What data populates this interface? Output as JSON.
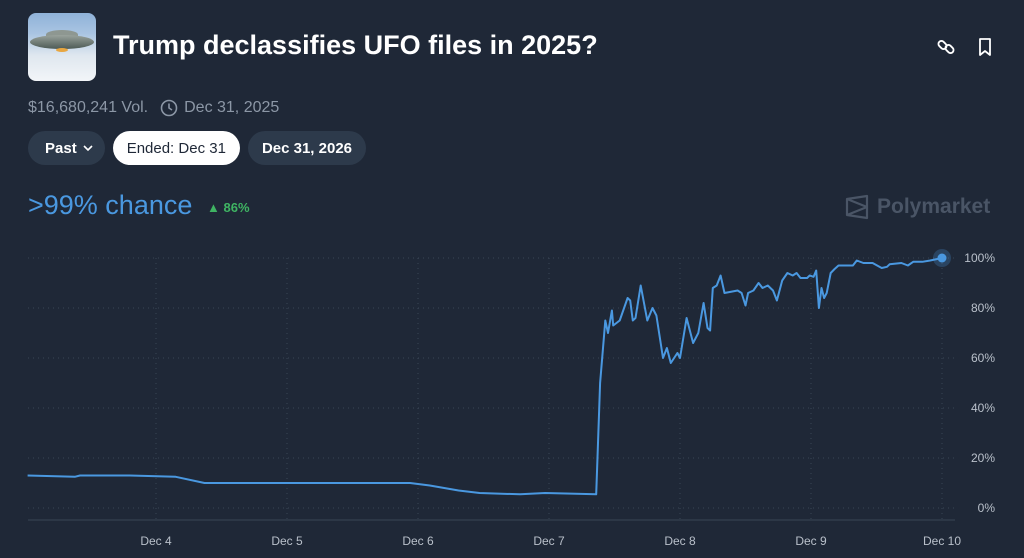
{
  "header": {
    "title": "Trump declassifies UFO files in 2025?",
    "thumbnail": "ufo-saucer-image",
    "link_icon": "link-icon",
    "bookmark_icon": "bookmark-icon"
  },
  "meta": {
    "volume": "$16,680,241 Vol.",
    "end_date": "Dec 31, 2025"
  },
  "pills": [
    {
      "label": "Past",
      "dropdown": true
    },
    {
      "label": "Ended: Dec 31",
      "active": true
    },
    {
      "label": "Dec 31, 2026"
    }
  ],
  "summary": {
    "chance": ">99% chance",
    "change": "86%",
    "change_direction": "up",
    "change_color": "#3fb463",
    "accent": "#4a98e0"
  },
  "brand": "Polymarket",
  "chart_data": {
    "type": "line",
    "x_unit": "day of December 2025",
    "xticks": [
      {
        "value": 4,
        "label": "Dec 4"
      },
      {
        "value": 5,
        "label": "Dec 5"
      },
      {
        "value": 6,
        "label": "Dec 6"
      },
      {
        "value": 7,
        "label": "Dec 7"
      },
      {
        "value": 8,
        "label": "Dec 8"
      },
      {
        "value": 9,
        "label": "Dec 9"
      },
      {
        "value": 10,
        "label": "Dec 10"
      }
    ],
    "yticks": [
      {
        "value": 0,
        "label": "0%"
      },
      {
        "value": 20,
        "label": "20%"
      },
      {
        "value": 40,
        "label": "40%"
      },
      {
        "value": 60,
        "label": "60%"
      },
      {
        "value": 80,
        "label": "80%"
      },
      {
        "value": 100,
        "label": "100%"
      }
    ],
    "ylim": [
      0,
      100
    ],
    "grid": true,
    "color": "#4a98e0",
    "series": [
      {
        "x": [
          3.02,
          3.38,
          3.42,
          3.8,
          4.15,
          4.37,
          5.94,
          6.09,
          6.31,
          6.47,
          6.78,
          6.97,
          7.36,
          7.39,
          7.43,
          7.45,
          7.48,
          7.49,
          7.54,
          7.6,
          7.62,
          7.64,
          7.66,
          7.7,
          7.75,
          7.79,
          7.82,
          7.87,
          7.9,
          7.93,
          7.98,
          8.0,
          8.05,
          8.1,
          8.14,
          8.18,
          8.21,
          8.23,
          8.25,
          8.28,
          8.31,
          8.34,
          8.44,
          8.47,
          8.5,
          8.52,
          8.56,
          8.6,
          8.63,
          8.67,
          8.71,
          8.74,
          8.78,
          8.82,
          8.86,
          8.89,
          8.92,
          8.97,
          8.99,
          9.02,
          9.04,
          9.06,
          9.08,
          9.1,
          9.12,
          9.15,
          9.18,
          9.21,
          9.27,
          9.32,
          9.35,
          9.4,
          9.47,
          9.54,
          9.58,
          9.6,
          9.69,
          9.74,
          9.78,
          9.85,
          9.91,
          10.0
        ],
        "y": [
          13,
          12.5,
          13,
          13,
          12.5,
          10,
          10,
          9,
          7,
          6,
          5.5,
          6,
          5.5,
          50,
          75,
          70,
          79,
          73,
          75,
          84,
          83,
          75,
          76,
          89,
          75,
          80,
          77,
          60,
          64,
          58,
          62,
          60,
          76,
          66,
          70,
          82,
          72,
          71,
          88,
          89,
          93,
          86,
          87,
          86,
          81,
          86,
          87,
          90,
          88,
          89,
          87,
          83,
          91,
          94,
          93,
          94,
          92,
          92,
          93,
          92.5,
          95,
          80,
          88,
          84,
          86,
          94,
          95.6,
          97,
          97,
          97,
          99,
          98,
          98,
          96,
          96.5,
          97.5,
          98,
          97,
          98.5,
          98.5,
          99,
          100
        ]
      }
    ]
  }
}
